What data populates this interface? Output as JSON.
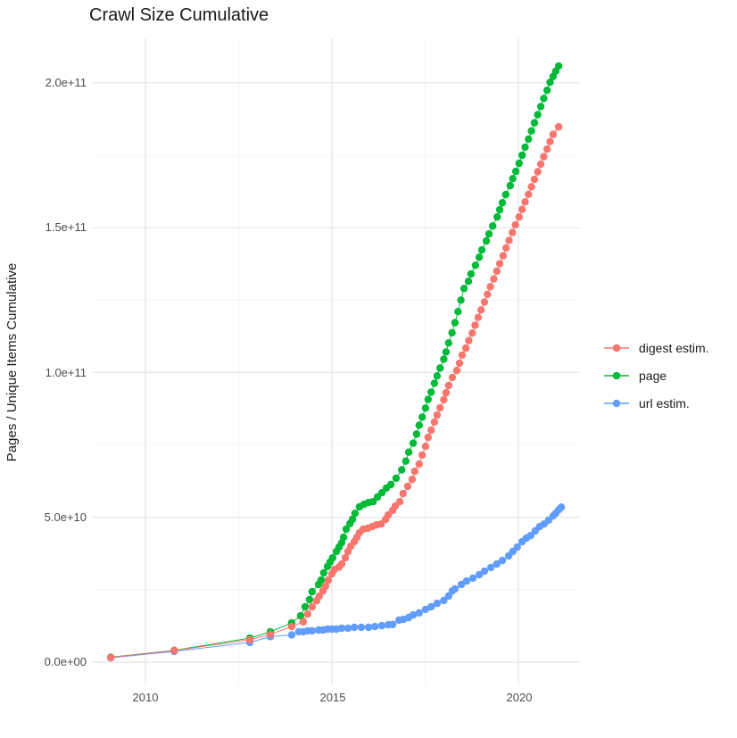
{
  "title": "Crawl Size Cumulative",
  "axes": {
    "y_label": "Pages / Unique Items Cumulative",
    "y_ticks": [
      "0.0e+00",
      "5.0e+10",
      "1.0e+11",
      "1.5e+11",
      "2.0e+11"
    ],
    "x_ticks": [
      "2010",
      "2015",
      "2020"
    ]
  },
  "legend": {
    "items": [
      {
        "label": "digest estim.",
        "color": "#F8766D"
      },
      {
        "label": "page",
        "color": "#00BA38"
      },
      {
        "label": "url estim.",
        "color": "#619CFF"
      }
    ]
  },
  "chart_data": {
    "type": "scatter",
    "title": "Crawl Size Cumulative",
    "xlabel": "",
    "ylabel": "Pages / Unique Items Cumulative",
    "value_unit": "billions (1e9) of pages / unique items, cumulative",
    "x_domain": [
      2008.6,
      2021.65
    ],
    "y_domain_billions": [
      -8.6,
      215.3
    ],
    "x_major_gridlines": [
      2010,
      2015,
      2020
    ],
    "x_minor_gridlines": [
      2012.5,
      2017.5
    ],
    "y_major_gridlines_billions": [
      0,
      50,
      100,
      150,
      200
    ],
    "y_minor_gridlines_billions": [
      25,
      75,
      125,
      175
    ],
    "grid": "on",
    "legend_position": "right",
    "series": [
      {
        "name": "digest estim.",
        "color": "#F8766D",
        "points": [
          [
            2009.07,
            1.6
          ],
          [
            2010.77,
            4.0
          ],
          [
            2012.8,
            7.7
          ],
          [
            2013.35,
            9.6
          ],
          [
            2013.92,
            12.3
          ],
          [
            2014.23,
            13.9
          ],
          [
            2014.35,
            16.6
          ],
          [
            2014.47,
            19.1
          ],
          [
            2014.59,
            21.2
          ],
          [
            2014.66,
            22.8
          ],
          [
            2014.76,
            24.6
          ],
          [
            2014.83,
            26.2
          ],
          [
            2014.9,
            28.3
          ],
          [
            2015.0,
            30.5
          ],
          [
            2015.07,
            32.0
          ],
          [
            2015.19,
            32.8
          ],
          [
            2015.26,
            33.9
          ],
          [
            2015.36,
            36.0
          ],
          [
            2015.43,
            38.2
          ],
          [
            2015.5,
            40.0
          ],
          [
            2015.6,
            41.6
          ],
          [
            2015.67,
            43.1
          ],
          [
            2015.74,
            44.7
          ],
          [
            2015.84,
            45.9
          ],
          [
            2015.96,
            46.2
          ],
          [
            2016.08,
            46.8
          ],
          [
            2016.2,
            47.4
          ],
          [
            2016.32,
            47.7
          ],
          [
            2016.44,
            49.3
          ],
          [
            2016.51,
            50.8
          ],
          [
            2016.63,
            52.4
          ],
          [
            2016.7,
            53.9
          ],
          [
            2016.82,
            55.4
          ],
          [
            2016.91,
            58.2
          ],
          [
            2017.03,
            60.7
          ],
          [
            2017.15,
            63.1
          ],
          [
            2017.22,
            65.9
          ],
          [
            2017.34,
            68.4
          ],
          [
            2017.42,
            71.5
          ],
          [
            2017.51,
            74.5
          ],
          [
            2017.58,
            77.6
          ],
          [
            2017.66,
            80.1
          ],
          [
            2017.75,
            82.9
          ],
          [
            2017.82,
            85.3
          ],
          [
            2017.9,
            87.8
          ],
          [
            2018.0,
            90.6
          ],
          [
            2018.06,
            93.0
          ],
          [
            2018.13,
            95.5
          ],
          [
            2018.23,
            98.3
          ],
          [
            2018.35,
            100.7
          ],
          [
            2018.42,
            103.2
          ],
          [
            2018.49,
            106.0
          ],
          [
            2018.59,
            108.4
          ],
          [
            2018.67,
            111.0
          ],
          [
            2018.76,
            113.6
          ],
          [
            2018.84,
            116.3
          ],
          [
            2018.92,
            119.0
          ],
          [
            2019.0,
            121.6
          ],
          [
            2019.09,
            124.3
          ],
          [
            2019.17,
            127.0
          ],
          [
            2019.25,
            129.6
          ],
          [
            2019.34,
            132.3
          ],
          [
            2019.42,
            135.0
          ],
          [
            2019.5,
            137.6
          ],
          [
            2019.59,
            140.3
          ],
          [
            2019.67,
            143.0
          ],
          [
            2019.75,
            145.6
          ],
          [
            2019.84,
            148.3
          ],
          [
            2019.92,
            151.0
          ],
          [
            2020.02,
            153.7
          ],
          [
            2020.1,
            156.3
          ],
          [
            2020.18,
            158.9
          ],
          [
            2020.27,
            161.5
          ],
          [
            2020.35,
            164.1
          ],
          [
            2020.43,
            166.7
          ],
          [
            2020.52,
            169.3
          ],
          [
            2020.6,
            171.9
          ],
          [
            2020.68,
            174.5
          ],
          [
            2020.77,
            177.1
          ],
          [
            2020.85,
            179.7
          ],
          [
            2020.93,
            182.2
          ],
          [
            2021.08,
            184.8
          ]
        ]
      },
      {
        "name": "page",
        "color": "#00BA38",
        "points": [
          [
            2009.07,
            1.7
          ],
          [
            2010.77,
            4.1
          ],
          [
            2012.8,
            8.3
          ],
          [
            2013.35,
            10.5
          ],
          [
            2013.92,
            13.6
          ],
          [
            2014.16,
            16.0
          ],
          [
            2014.28,
            19.1
          ],
          [
            2014.4,
            21.6
          ],
          [
            2014.47,
            24.3
          ],
          [
            2014.64,
            26.8
          ],
          [
            2014.71,
            28.3
          ],
          [
            2014.78,
            30.8
          ],
          [
            2014.88,
            33.0
          ],
          [
            2014.95,
            34.5
          ],
          [
            2015.02,
            36.0
          ],
          [
            2015.12,
            38.2
          ],
          [
            2015.19,
            39.7
          ],
          [
            2015.26,
            41.2
          ],
          [
            2015.31,
            43.1
          ],
          [
            2015.38,
            45.9
          ],
          [
            2015.48,
            47.8
          ],
          [
            2015.55,
            49.3
          ],
          [
            2015.62,
            51.4
          ],
          [
            2015.74,
            53.6
          ],
          [
            2015.86,
            54.5
          ],
          [
            2015.98,
            55.1
          ],
          [
            2016.1,
            55.4
          ],
          [
            2016.22,
            57.0
          ],
          [
            2016.34,
            58.5
          ],
          [
            2016.46,
            60.1
          ],
          [
            2016.58,
            61.3
          ],
          [
            2016.72,
            63.5
          ],
          [
            2016.87,
            66.4
          ],
          [
            2016.98,
            69.4
          ],
          [
            2017.06,
            72.5
          ],
          [
            2017.18,
            75.6
          ],
          [
            2017.27,
            78.7
          ],
          [
            2017.34,
            81.8
          ],
          [
            2017.42,
            84.6
          ],
          [
            2017.51,
            87.7
          ],
          [
            2017.58,
            90.7
          ],
          [
            2017.66,
            93.2
          ],
          [
            2017.75,
            96.3
          ],
          [
            2017.82,
            98.8
          ],
          [
            2017.9,
            101.5
          ],
          [
            2018.0,
            104.6
          ],
          [
            2018.06,
            107.1
          ],
          [
            2018.13,
            110.2
          ],
          [
            2018.22,
            113.7
          ],
          [
            2018.3,
            117.2
          ],
          [
            2018.38,
            121.0
          ],
          [
            2018.46,
            125.0
          ],
          [
            2018.54,
            129.0
          ],
          [
            2018.66,
            131.5
          ],
          [
            2018.73,
            134.0
          ],
          [
            2018.85,
            137.0
          ],
          [
            2018.95,
            139.8
          ],
          [
            2019.02,
            142.3
          ],
          [
            2019.14,
            145.4
          ],
          [
            2019.21,
            147.8
          ],
          [
            2019.31,
            150.6
          ],
          [
            2019.43,
            153.7
          ],
          [
            2019.5,
            156.2
          ],
          [
            2019.57,
            158.6
          ],
          [
            2019.66,
            161.4
          ],
          [
            2019.78,
            164.5
          ],
          [
            2019.85,
            166.9
          ],
          [
            2019.93,
            169.4
          ],
          [
            2020.02,
            172.2
          ],
          [
            2020.1,
            175.0
          ],
          [
            2020.18,
            177.8
          ],
          [
            2020.27,
            180.6
          ],
          [
            2020.35,
            183.4
          ],
          [
            2020.43,
            186.2
          ],
          [
            2020.52,
            189.0
          ],
          [
            2020.6,
            191.8
          ],
          [
            2020.68,
            194.6
          ],
          [
            2020.77,
            197.4
          ],
          [
            2020.85,
            200.2
          ],
          [
            2020.93,
            202.2
          ],
          [
            2021.0,
            204.0
          ],
          [
            2021.08,
            205.8
          ]
        ]
      },
      {
        "name": "url estim.",
        "color": "#619CFF",
        "points": [
          [
            2009.07,
            1.5
          ],
          [
            2010.77,
            3.7
          ],
          [
            2012.8,
            6.8
          ],
          [
            2013.35,
            8.8
          ],
          [
            2013.92,
            9.4
          ],
          [
            2014.11,
            10.5
          ],
          [
            2014.23,
            10.5
          ],
          [
            2014.35,
            10.8
          ],
          [
            2014.47,
            10.8
          ],
          [
            2014.64,
            11.1
          ],
          [
            2014.76,
            11.1
          ],
          [
            2014.88,
            11.4
          ],
          [
            2015.0,
            11.4
          ],
          [
            2015.12,
            11.4
          ],
          [
            2015.26,
            11.7
          ],
          [
            2015.43,
            11.7
          ],
          [
            2015.6,
            12.0
          ],
          [
            2015.79,
            12.0
          ],
          [
            2015.98,
            12.0
          ],
          [
            2016.15,
            12.3
          ],
          [
            2016.34,
            12.6
          ],
          [
            2016.51,
            12.9
          ],
          [
            2016.63,
            13.0
          ],
          [
            2016.8,
            14.5
          ],
          [
            2016.92,
            14.8
          ],
          [
            2017.06,
            15.4
          ],
          [
            2017.18,
            16.3
          ],
          [
            2017.34,
            17.0
          ],
          [
            2017.51,
            18.2
          ],
          [
            2017.66,
            19.1
          ],
          [
            2017.82,
            20.3
          ],
          [
            2018.0,
            21.3
          ],
          [
            2018.13,
            22.8
          ],
          [
            2018.23,
            24.6
          ],
          [
            2018.3,
            25.3
          ],
          [
            2018.47,
            26.8
          ],
          [
            2018.61,
            28.0
          ],
          [
            2018.78,
            29.0
          ],
          [
            2018.95,
            30.2
          ],
          [
            2019.09,
            31.4
          ],
          [
            2019.26,
            32.7
          ],
          [
            2019.42,
            33.9
          ],
          [
            2019.57,
            35.1
          ],
          [
            2019.74,
            36.7
          ],
          [
            2019.85,
            38.2
          ],
          [
            2019.97,
            39.7
          ],
          [
            2020.1,
            41.6
          ],
          [
            2020.21,
            42.8
          ],
          [
            2020.33,
            43.7
          ],
          [
            2020.45,
            45.3
          ],
          [
            2020.57,
            46.8
          ],
          [
            2020.69,
            47.7
          ],
          [
            2020.81,
            49.0
          ],
          [
            2020.93,
            50.5
          ],
          [
            2021.0,
            51.4
          ],
          [
            2021.08,
            52.6
          ],
          [
            2021.15,
            53.5
          ]
        ]
      }
    ]
  }
}
